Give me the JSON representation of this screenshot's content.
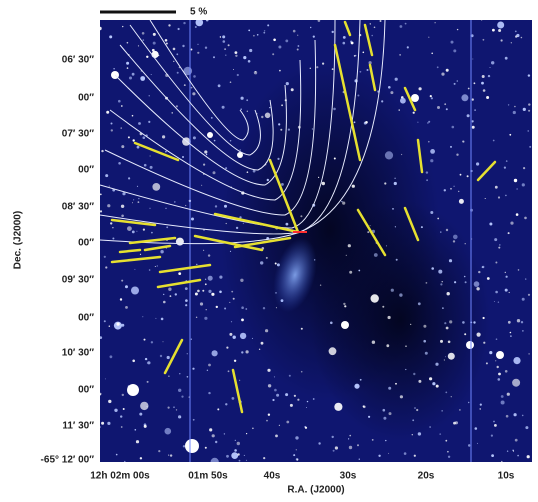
{
  "scale_bar": {
    "label": "5 %"
  },
  "axes": {
    "y_label": "Dec. (J2000)",
    "x_label": "R.A. (J2000)",
    "y_ticks": [
      "06′ 30″",
      "00″",
      "07′ 30″",
      "00″",
      "08′ 30″",
      "00″",
      "09′ 30″",
      "00″",
      "10′ 30″",
      "00″",
      "11′ 30″",
      "-65° 12′ 00″"
    ],
    "x_ticks": [
      "12h 02m 00s",
      "01m 50s",
      "40s",
      "30s",
      "20s",
      "10s"
    ]
  }
}
